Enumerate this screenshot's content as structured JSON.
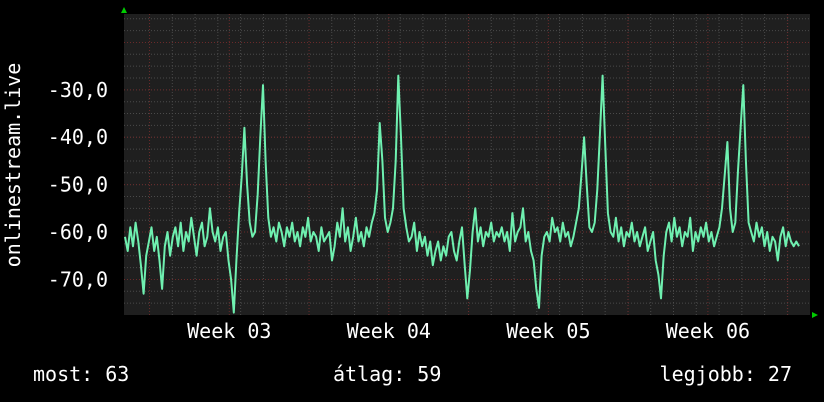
{
  "colors": {
    "background": "#000000",
    "plot_background": "#1f1f1f",
    "grid": "#4a4a4a",
    "grid_major": "#6a2a2a",
    "line": "#6ff0b0",
    "text": "#ffffff",
    "axis_arrow": "#00cc00"
  },
  "stats": {
    "current": "most: 63",
    "average": "átlag: 59",
    "best": "legjobb: 27"
  },
  "chart_data": {
    "type": "line",
    "title": "",
    "ylabel": "onlinestream.live",
    "xlabel": "",
    "ylim": [
      -77.5,
      -14
    ],
    "yticks": [
      -30,
      -40,
      -50,
      -60,
      -70
    ],
    "ytick_labels": [
      "-30,0",
      "-40,0",
      "-50,0",
      "-60,0",
      "-70,0"
    ],
    "xlim": [
      0,
      4.3
    ],
    "xticks": [
      0.66,
      1.66,
      2.66,
      3.66
    ],
    "xtick_labels": [
      "Week 03",
      "Week 04",
      "Week 05",
      "Week 06"
    ],
    "grid": true,
    "series": [
      {
        "values": [
          -61,
          -64,
          -59,
          -63,
          -58,
          -62,
          -67,
          -73,
          -65,
          -62,
          -59,
          -64,
          -61,
          -66,
          -72,
          -63,
          -60,
          -65,
          -61,
          -59,
          -63,
          -58,
          -64,
          -60,
          -62,
          -57,
          -61,
          -65,
          -60,
          -58,
          -63,
          -61,
          -55,
          -60,
          -62,
          -59,
          -64,
          -61,
          -60,
          -66,
          -70,
          -77,
          -66,
          -56,
          -48,
          -38,
          -50,
          -58,
          -61,
          -60,
          -52,
          -40,
          -29,
          -45,
          -57,
          -61,
          -59,
          -62,
          -58,
          -60,
          -63,
          -59,
          -61,
          -58,
          -62,
          -60,
          -63,
          -59,
          -61,
          -57,
          -62,
          -60,
          -61,
          -64,
          -59,
          -62,
          -61,
          -60,
          -66,
          -63,
          -58,
          -61,
          -55,
          -62,
          -59,
          -64,
          -61,
          -57,
          -62,
          -60,
          -63,
          -59,
          -61,
          -58,
          -56,
          -51,
          -37,
          -45,
          -57,
          -60,
          -58,
          -55,
          -45,
          -27,
          -40,
          -55,
          -59,
          -62,
          -61,
          -58,
          -64,
          -60,
          -63,
          -61,
          -65,
          -62,
          -67,
          -64,
          -62,
          -66,
          -63,
          -65,
          -61,
          -60,
          -64,
          -66,
          -62,
          -59,
          -67,
          -74,
          -68,
          -60,
          -55,
          -62,
          -59,
          -63,
          -60,
          -61,
          -58,
          -62,
          -60,
          -61,
          -59,
          -62,
          -60,
          -64,
          -56,
          -62,
          -60,
          -59,
          -55,
          -62,
          -60,
          -64,
          -66,
          -72,
          -76,
          -65,
          -61,
          -60,
          -62,
          -57,
          -60,
          -59,
          -62,
          -58,
          -61,
          -60,
          -63,
          -61,
          -58,
          -55,
          -48,
          -40,
          -50,
          -59,
          -60,
          -58,
          -51,
          -39,
          -27,
          -42,
          -56,
          -60,
          -61,
          -57,
          -62,
          -59,
          -63,
          -60,
          -61,
          -58,
          -62,
          -60,
          -63,
          -61,
          -59,
          -64,
          -62,
          -60,
          -66,
          -69,
          -74,
          -65,
          -60,
          -58,
          -62,
          -57,
          -61,
          -59,
          -63,
          -60,
          -61,
          -57,
          -64,
          -60,
          -62,
          -59,
          -61,
          -58,
          -62,
          -60,
          -63,
          -61,
          -59,
          -55,
          -48,
          -41,
          -55,
          -60,
          -58,
          -47,
          -38,
          -29,
          -45,
          -58,
          -60,
          -62,
          -58,
          -61,
          -59,
          -63,
          -60,
          -64,
          -61,
          -62,
          -66,
          -61,
          -59,
          -63,
          -60,
          -62,
          -63,
          -62,
          -63
        ]
      }
    ]
  }
}
